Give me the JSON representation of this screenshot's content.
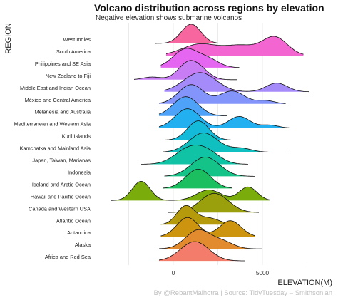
{
  "chart_data": {
    "type": "ridgeline",
    "title": "Volcano distribution across regions by elevation",
    "subtitle": "Negative elevation shows submarine volcanos",
    "xlabel": "ELEVATION(M)",
    "ylabel": "REGION",
    "caption": "By @RebantMalhotra | Source: TidyTuesday – Smithsonian",
    "xlim": [
      -2500,
      7800
    ],
    "x_ticks": [
      0,
      5000
    ],
    "x_tick_labels": [
      "0",
      "5000"
    ],
    "grid": "vertical",
    "series": [
      {
        "name": "West Indies",
        "color": "#f8669f",
        "range": [
          -1000,
          2600
        ],
        "peaks": [
          [
            1000,
            550,
            1
          ]
        ]
      },
      {
        "name": "South America",
        "color": "#f365d1",
        "range": [
          -400,
          7300
        ],
        "peaks": [
          [
            1500,
            1000,
            0.6
          ],
          [
            3800,
            900,
            0.5
          ],
          [
            5700,
            700,
            0.95
          ]
        ]
      },
      {
        "name": "Philippines and SE Asia",
        "color": "#e566f0",
        "range": [
          -700,
          3700
        ],
        "peaks": [
          [
            700,
            700,
            1
          ],
          [
            2000,
            600,
            0.4
          ]
        ]
      },
      {
        "name": "New Zealand to Fiji",
        "color": "#c97df5",
        "range": [
          -2200,
          3600
        ],
        "peaks": [
          [
            -1200,
            500,
            0.15
          ],
          [
            900,
            600,
            1
          ],
          [
            1700,
            500,
            0.25
          ]
        ]
      },
      {
        "name": "Middle East and Indian Ocean",
        "color": "#a58afa",
        "range": [
          -500,
          7600
        ],
        "peaks": [
          [
            1500,
            900,
            1
          ],
          [
            5800,
            600,
            0.45
          ]
        ]
      },
      {
        "name": "México and Central America",
        "color": "#8395fb",
        "range": [
          -800,
          6300
        ],
        "peaks": [
          [
            1000,
            700,
            0.9
          ],
          [
            3300,
            700,
            0.6
          ],
          [
            5200,
            500,
            0.15
          ]
        ]
      },
      {
        "name": "Melanesia and Australia",
        "color": "#4ea3f8",
        "range": [
          -800,
          3000
        ],
        "peaks": [
          [
            700,
            700,
            1
          ]
        ]
      },
      {
        "name": "Mediterranean and Western Asia",
        "color": "#22b0f0",
        "range": [
          -800,
          6500
        ],
        "peaks": [
          [
            800,
            700,
            1
          ],
          [
            3700,
            600,
            0.6
          ],
          [
            5400,
            500,
            0.15
          ]
        ]
      },
      {
        "name": "Kuril Islands",
        "color": "#14bad9",
        "range": [
          -600,
          3400
        ],
        "peaks": [
          [
            1400,
            600,
            1
          ]
        ]
      },
      {
        "name": "Kamchatka and Mainland Asia",
        "color": "#10c0c0",
        "range": [
          -600,
          6300
        ],
        "peaks": [
          [
            1700,
            800,
            1
          ],
          [
            3800,
            600,
            0.2
          ]
        ]
      },
      {
        "name": "Japan, Taiwan, Marianas",
        "color": "#10c3a5",
        "range": [
          -1800,
          4200
        ],
        "peaks": [
          [
            900,
            800,
            1
          ],
          [
            2000,
            700,
            0.6
          ]
        ]
      },
      {
        "name": "Indonesia",
        "color": "#13c388",
        "range": [
          -500,
          4600
        ],
        "peaks": [
          [
            1800,
            800,
            1
          ]
        ]
      },
      {
        "name": "Iceland and Arctic Ocean",
        "color": "#1bbf60",
        "range": [
          -600,
          3300
        ],
        "peaks": [
          [
            1400,
            700,
            1
          ]
        ]
      },
      {
        "name": "Hawaii and Pacific Ocean",
        "color": "#7aad0c",
        "range": [
          -3500,
          5400
        ],
        "peaks": [
          [
            -1800,
            500,
            1
          ],
          [
            2000,
            700,
            0.55
          ],
          [
            4200,
            500,
            0.7
          ]
        ]
      },
      {
        "name": "Canada and Western USA",
        "color": "#99a00c",
        "range": [
          -300,
          4800
        ],
        "peaks": [
          [
            2300,
            800,
            1
          ]
        ]
      },
      {
        "name": "Atlantic Ocean",
        "color": "#b59a0c",
        "range": [
          -700,
          3300
        ],
        "peaks": [
          [
            700,
            500,
            1
          ],
          [
            2000,
            600,
            0.35
          ]
        ]
      },
      {
        "name": "Antarctica",
        "color": "#cd9410",
        "range": [
          -700,
          4600
        ],
        "peaks": [
          [
            800,
            600,
            0.9
          ],
          [
            3200,
            600,
            0.75
          ]
        ]
      },
      {
        "name": "Alaska",
        "color": "#e18a2e",
        "range": [
          -800,
          5000
        ],
        "peaks": [
          [
            1400,
            700,
            1
          ],
          [
            2800,
            600,
            0.35
          ]
        ]
      },
      {
        "name": "Africa and Red Sea",
        "color": "#f37d6a",
        "range": [
          -800,
          4000
        ],
        "peaks": [
          [
            1200,
            800,
            1
          ]
        ]
      }
    ]
  }
}
